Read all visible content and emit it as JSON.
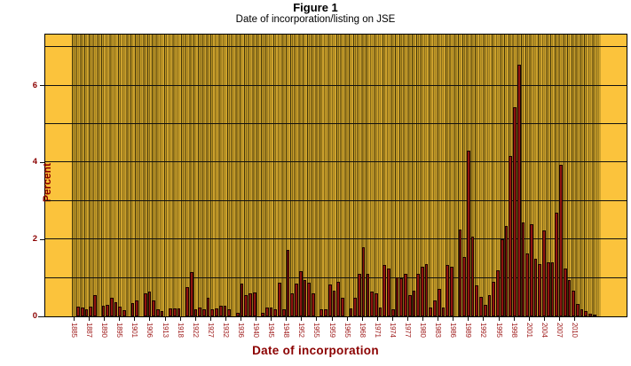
{
  "figure": {
    "title": "Figure 1",
    "subtitle": "Date of incorporation/listing on JSE"
  },
  "chart_data": {
    "type": "bar",
    "title": "Figure 1",
    "subtitle": "Date of incorporation/listing on JSE",
    "xlabel": "Date of incorporation",
    "ylabel": "Percent",
    "ylim": [
      0,
      7.33
    ],
    "grid": "on",
    "legend": "none",
    "gridlines_y": [
      1,
      2,
      3,
      4,
      5,
      6,
      7
    ],
    "ytick_values": [
      0,
      2,
      4,
      6
    ],
    "x_tick_labels": [
      "1885",
      "1887",
      "1890",
      "1895",
      "1901",
      "1906",
      "1913",
      "1918",
      "1922",
      "1927",
      "1932",
      "1936",
      "1940",
      "1945",
      "1948",
      "1952",
      "1955",
      "1959",
      "1965",
      "1968",
      "1971",
      "1974",
      "1977",
      "1980",
      "1983",
      "1986",
      "1989",
      "1992",
      "1995",
      "1998",
      "2001",
      "2004",
      "2007",
      "2010"
    ],
    "values_note": "percent of firms per incorporation year, ~1885-2012, estimated from pixels",
    "values": [
      0,
      0.26,
      0.22,
      0.18,
      0.25,
      0.55,
      0,
      0.28,
      0.3,
      0.48,
      0.38,
      0.26,
      0.17,
      0,
      0.35,
      0.42,
      0,
      0.6,
      0.65,
      0.42,
      0.18,
      0.15,
      0,
      0.2,
      0.2,
      0.2,
      0,
      0.76,
      1.15,
      0.18,
      0.24,
      0.18,
      0.49,
      0.18,
      0.2,
      0.27,
      0.27,
      0.18,
      0,
      0.1,
      0.85,
      0.56,
      0.6,
      0.62,
      0,
      0.1,
      0.22,
      0.22,
      0.18,
      0.88,
      0.18,
      1.73,
      0.6,
      0.85,
      1.17,
      0.95,
      0.87,
      0.6,
      0,
      0.18,
      0.18,
      0.83,
      0.68,
      0.91,
      0.49,
      0,
      0.2,
      0.49,
      1.1,
      1.8,
      1.1,
      0.64,
      0.6,
      0.22,
      1.33,
      1.25,
      0.18,
      1.02,
      0.98,
      1.1,
      0.56,
      0.68,
      1.1,
      1.3,
      1.37,
      0.22,
      0.41,
      0.72,
      0.22,
      1.33,
      1.3,
      0,
      2.25,
      1.55,
      4.3,
      2.08,
      0.8,
      0.5,
      0.3,
      0.55,
      0.9,
      1.2,
      2.0,
      2.35,
      4.17,
      5.43,
      6.55,
      2.44,
      1.63,
      2.4,
      1.5,
      1.37,
      2.24,
      1.4,
      1.4,
      2.7,
      3.94,
      1.25,
      0.95,
      0.68,
      0.32,
      0.18,
      0.15,
      0.07,
      0.03,
      0
    ],
    "colors": {
      "bar_fill": "#8E1410",
      "bar_border": "#1C0301",
      "plot_bg": "#FBC33C",
      "stripe_gold": "#C49A25",
      "stripe_dark": "#43370A",
      "grid": "#111111",
      "axis_text": "#8B0000",
      "tick_text": "#9E1A1A",
      "title_text": "#000000"
    }
  }
}
